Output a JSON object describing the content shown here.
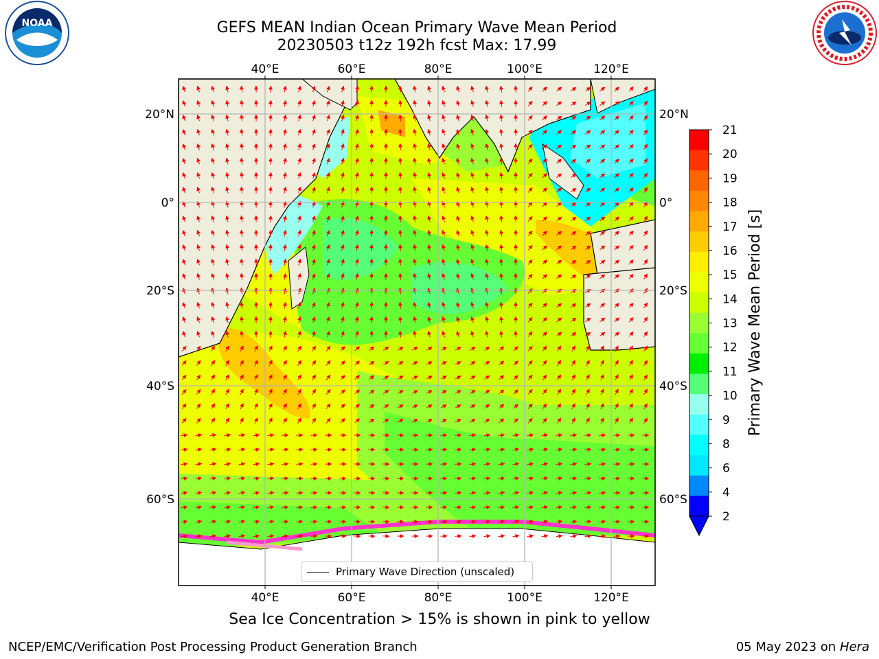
{
  "title_line1": "GEFS MEAN Indian Ocean Primary Wave Mean Period",
  "title_line2": "20230503 t12z 192h fcst   Max: 17.99",
  "lon_labels": [
    "40°E",
    "60°E",
    "80°E",
    "100°E",
    "120°E"
  ],
  "lat_labels": [
    "20°N",
    "0°",
    "20°S",
    "40°S",
    "60°S"
  ],
  "legend_label": "Primary Wave Direction (unscaled)",
  "colorbar": {
    "label": "Primary Wave Mean Period [s]",
    "ticks": [
      "21",
      "20",
      "19",
      "18",
      "17",
      "16",
      "15",
      "14",
      "13",
      "12",
      "11",
      "10",
      "9",
      "8",
      "6",
      "4",
      "2"
    ],
    "colors": [
      "#ff0000",
      "#ff3300",
      "#ff6600",
      "#ff8800",
      "#ffaa00",
      "#ffcc00",
      "#ffee00",
      "#eeff00",
      "#ccff00",
      "#99ff33",
      "#66ff33",
      "#00ee00",
      "#55ff77",
      "#99ffee",
      "#55ffff",
      "#00ffff",
      "#00e8ff",
      "#0088ff",
      "#0000ff"
    ]
  },
  "caption": "Sea Ice Concentration > 15% is shown in pink to yellow",
  "footer_left": "NCEP/EMC/Verification Post Processing Product Generation Branch",
  "footer_date": "05 May 2023 on",
  "footer_host": "Hera",
  "colors": {
    "land": "#efeedd",
    "arrow": "#ff0000",
    "grid": "#b4b4b4",
    "ice": "#ff33cc"
  }
}
